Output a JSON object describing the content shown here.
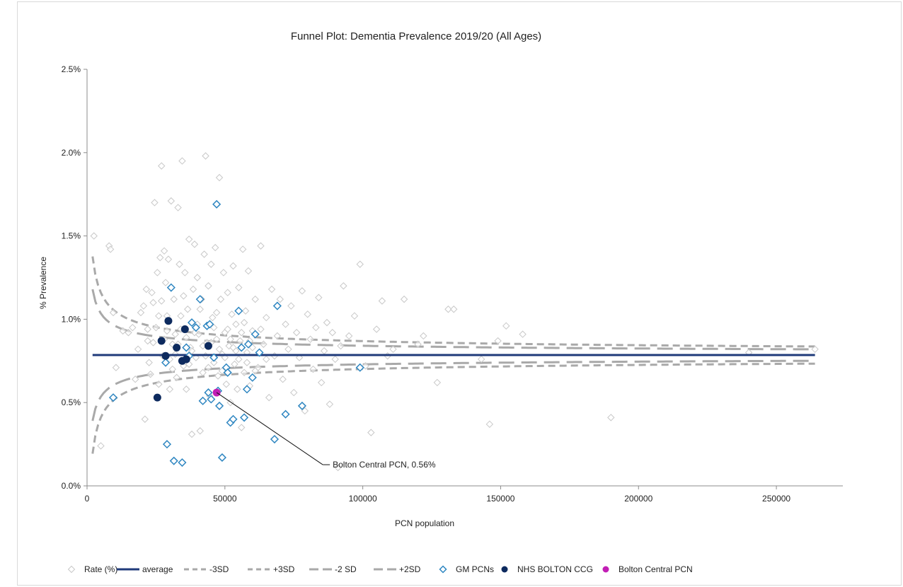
{
  "chart_data": {
    "type": "scatter",
    "title": "Funnel Plot: Dementia Prevalence 2019/20 (All Ages)",
    "xlabel": "PCN population",
    "ylabel": "% Prevalence",
    "xlim": [
      0,
      270000
    ],
    "ylim": [
      0,
      0.025
    ],
    "x_ticks": [
      0,
      50000,
      100000,
      150000,
      200000,
      250000
    ],
    "x_tick_labels": [
      "0",
      "50000",
      "100000",
      "150000",
      "200000",
      "250000"
    ],
    "y_ticks": [
      0,
      0.005,
      0.01,
      0.015,
      0.02,
      0.025
    ],
    "y_tick_labels": [
      "0.0%",
      "0.5%",
      "1.0%",
      "1.5%",
      "2.0%",
      "2.5%"
    ],
    "grid": false,
    "legend_position": "bottom",
    "average": 0.00785,
    "x_max_line": 264000,
    "sd_multipliers": {
      "minus3": -3,
      "plus3": 3,
      "minus2": -2,
      "plus2": 2
    },
    "series": [
      {
        "name": "Rate (%)",
        "kind": "points",
        "marker": "diamond-open",
        "color": "#c8c8c8",
        "points": [
          [
            2500,
            0.015
          ],
          [
            5000,
            0.0024
          ],
          [
            8000,
            0.0144
          ],
          [
            8500,
            0.0142
          ],
          [
            9500,
            0.0104
          ],
          [
            10500,
            0.0071
          ],
          [
            13000,
            0.0093
          ],
          [
            15000,
            0.0092
          ],
          [
            16500,
            0.0095
          ],
          [
            17500,
            0.0064
          ],
          [
            18500,
            0.0082
          ],
          [
            19500,
            0.0104
          ],
          [
            20500,
            0.0108
          ],
          [
            21000,
            0.004
          ],
          [
            21500,
            0.0118
          ],
          [
            22000,
            0.0087
          ],
          [
            22500,
            0.0074
          ],
          [
            23000,
            0.0067
          ],
          [
            23500,
            0.0116
          ],
          [
            24000,
            0.011
          ],
          [
            24500,
            0.017
          ],
          [
            25000,
            0.0095
          ],
          [
            25500,
            0.0128
          ],
          [
            26000,
            0.0061
          ],
          [
            26500,
            0.0137
          ],
          [
            27000,
            0.0192
          ],
          [
            27500,
            0.0078
          ],
          [
            28000,
            0.0141
          ],
          [
            28500,
            0.0122
          ],
          [
            29000,
            0.0102
          ],
          [
            29500,
            0.0136
          ],
          [
            30000,
            0.0058
          ],
          [
            30500,
            0.0171
          ],
          [
            31000,
            0.0085
          ],
          [
            31500,
            0.0112
          ],
          [
            32000,
            0.0091
          ],
          [
            32500,
            0.0065
          ],
          [
            33000,
            0.0167
          ],
          [
            33500,
            0.0133
          ],
          [
            34000,
            0.0094
          ],
          [
            34500,
            0.0195
          ],
          [
            35000,
            0.0072
          ],
          [
            35500,
            0.0128
          ],
          [
            36000,
            0.0058
          ],
          [
            36500,
            0.0106
          ],
          [
            37000,
            0.0148
          ],
          [
            37500,
            0.0083
          ],
          [
            38000,
            0.0031
          ],
          [
            38500,
            0.0118
          ],
          [
            39000,
            0.0145
          ],
          [
            39500,
            0.0077
          ],
          [
            40000,
            0.0125
          ],
          [
            40500,
            0.0091
          ],
          [
            41000,
            0.0033
          ],
          [
            41500,
            0.0112
          ],
          [
            42000,
            0.0068
          ],
          [
            42500,
            0.0139
          ],
          [
            43000,
            0.0198
          ],
          [
            43500,
            0.0086
          ],
          [
            44000,
            0.012
          ],
          [
            44500,
            0.0054
          ],
          [
            45000,
            0.0133
          ],
          [
            45500,
            0.0101
          ],
          [
            46000,
            0.0074
          ],
          [
            46500,
            0.0143
          ],
          [
            47000,
            0.0088
          ],
          [
            47500,
            0.0066
          ],
          [
            48000,
            0.0185
          ],
          [
            48500,
            0.0112
          ],
          [
            49000,
            0.0079
          ],
          [
            49500,
            0.0128
          ],
          [
            50000,
            0.0092
          ],
          [
            50500,
            0.0061
          ],
          [
            51000,
            0.0116
          ],
          [
            51500,
            0.0084
          ],
          [
            52000,
            0.005
          ],
          [
            52500,
            0.0103
          ],
          [
            53000,
            0.0132
          ],
          [
            53500,
            0.0073
          ],
          [
            54000,
            0.0097
          ],
          [
            54500,
            0.0058
          ],
          [
            55000,
            0.0119
          ],
          [
            55500,
            0.0087
          ],
          [
            56000,
            0.0035
          ],
          [
            56500,
            0.0142
          ],
          [
            57000,
            0.0068
          ],
          [
            57500,
            0.0105
          ],
          [
            58000,
            0.008
          ],
          [
            58500,
            0.0129
          ],
          [
            59000,
            0.006
          ],
          [
            60000,
            0.0093
          ],
          [
            61000,
            0.0112
          ],
          [
            62000,
            0.0071
          ],
          [
            63000,
            0.0144
          ],
          [
            64000,
            0.0085
          ],
          [
            65000,
            0.0101
          ],
          [
            66000,
            0.0053
          ],
          [
            67000,
            0.0118
          ],
          [
            68000,
            0.0078
          ],
          [
            69000,
            0.009
          ],
          [
            70000,
            0.0112
          ],
          [
            71000,
            0.0064
          ],
          [
            72000,
            0.0097
          ],
          [
            73000,
            0.0082
          ],
          [
            74000,
            0.0108
          ],
          [
            75000,
            0.0056
          ],
          [
            76000,
            0.0092
          ],
          [
            77000,
            0.0077
          ],
          [
            78000,
            0.0117
          ],
          [
            79000,
            0.0045
          ],
          [
            80000,
            0.0103
          ],
          [
            81000,
            0.0088
          ],
          [
            82000,
            0.007
          ],
          [
            83000,
            0.0095
          ],
          [
            84000,
            0.0113
          ],
          [
            85000,
            0.0062
          ],
          [
            86000,
            0.0081
          ],
          [
            87000,
            0.0098
          ],
          [
            88000,
            0.0049
          ],
          [
            89000,
            0.0092
          ],
          [
            90000,
            0.0076
          ],
          [
            91000,
            0.0011
          ],
          [
            92000,
            0.0084
          ],
          [
            93000,
            0.012
          ],
          [
            95000,
            0.009
          ],
          [
            97000,
            0.0102
          ],
          [
            99000,
            0.0133
          ],
          [
            101000,
            0.0072
          ],
          [
            103000,
            0.0032
          ],
          [
            105000,
            0.0094
          ],
          [
            107000,
            0.0111
          ],
          [
            109000,
            0.0078
          ],
          [
            111000,
            0.0082
          ],
          [
            115000,
            0.0112
          ],
          [
            120000,
            0.0085
          ],
          [
            122000,
            0.009
          ],
          [
            127000,
            0.0062
          ],
          [
            131000,
            0.0106
          ],
          [
            133000,
            0.0106
          ],
          [
            143000,
            0.0076
          ],
          [
            146000,
            0.0037
          ],
          [
            149000,
            0.0087
          ],
          [
            152000,
            0.0096
          ],
          [
            158000,
            0.0091
          ],
          [
            190000,
            0.0041
          ],
          [
            240000,
            0.008
          ],
          [
            264000,
            0.0082
          ],
          [
            22000,
            0.0094
          ],
          [
            24000,
            0.0086
          ],
          [
            26000,
            0.0102
          ],
          [
            28000,
            0.0088
          ],
          [
            30000,
            0.0076
          ],
          [
            32000,
            0.0079
          ],
          [
            34000,
            0.0102
          ],
          [
            36000,
            0.0089
          ],
          [
            38000,
            0.0081
          ],
          [
            40000,
            0.0097
          ],
          [
            42000,
            0.0084
          ],
          [
            44000,
            0.0071
          ],
          [
            46000,
            0.0095
          ],
          [
            48000,
            0.0082
          ],
          [
            50000,
            0.0077
          ],
          [
            52000,
            0.0088
          ],
          [
            54000,
            0.0081
          ],
          [
            56000,
            0.0092
          ],
          [
            58000,
            0.0074
          ],
          [
            60000,
            0.0083
          ],
          [
            27000,
            0.0111
          ],
          [
            29000,
            0.0093
          ],
          [
            31000,
            0.007
          ],
          [
            33000,
            0.0085
          ],
          [
            35000,
            0.0114
          ],
          [
            37000,
            0.0073
          ],
          [
            39000,
            0.0092
          ],
          [
            41000,
            0.0106
          ],
          [
            43000,
            0.0078
          ],
          [
            45000,
            0.0086
          ],
          [
            47000,
            0.0104
          ],
          [
            49000,
            0.0069
          ],
          [
            51000,
            0.0094
          ],
          [
            53000,
            0.0083
          ],
          [
            55000,
            0.0076
          ],
          [
            57000,
            0.0098
          ],
          [
            59000,
            0.0087
          ],
          [
            61000,
            0.0069
          ],
          [
            63000,
            0.0094
          ],
          [
            65000,
            0.0076
          ]
        ]
      },
      {
        "name": "average",
        "kind": "line",
        "color": "#1f3a7a",
        "style": "solid"
      },
      {
        "name": "-3SD",
        "kind": "line",
        "color": "#a9a9a9",
        "style": "dashed-short"
      },
      {
        "name": "+3SD",
        "kind": "line",
        "color": "#a9a9a9",
        "style": "dashed-short"
      },
      {
        "name": "-2 SD",
        "kind": "line",
        "color": "#a9a9a9",
        "style": "dashed-long"
      },
      {
        "name": "+2SD",
        "kind": "line",
        "color": "#a9a9a9",
        "style": "dashed-long"
      },
      {
        "name": "GM PCNs",
        "kind": "points",
        "marker": "diamond-open",
        "color": "#2e86c1",
        "points": [
          [
            9500,
            0.0053
          ],
          [
            28500,
            0.0074
          ],
          [
            29000,
            0.0025
          ],
          [
            30500,
            0.0119
          ],
          [
            31500,
            0.0015
          ],
          [
            34500,
            0.0014
          ],
          [
            36000,
            0.0083
          ],
          [
            37000,
            0.0078
          ],
          [
            38000,
            0.0098
          ],
          [
            39500,
            0.0095
          ],
          [
            41000,
            0.0112
          ],
          [
            42000,
            0.0051
          ],
          [
            43500,
            0.0096
          ],
          [
            44000,
            0.0056
          ],
          [
            44500,
            0.0097
          ],
          [
            45000,
            0.0052
          ],
          [
            46000,
            0.0077
          ],
          [
            47000,
            0.0169
          ],
          [
            47500,
            0.0057
          ],
          [
            48000,
            0.0048
          ],
          [
            49000,
            0.0017
          ],
          [
            50500,
            0.0071
          ],
          [
            51000,
            0.0068
          ],
          [
            52000,
            0.0038
          ],
          [
            53000,
            0.004
          ],
          [
            55000,
            0.0105
          ],
          [
            56000,
            0.0083
          ],
          [
            57000,
            0.0041
          ],
          [
            58000,
            0.0058
          ],
          [
            58500,
            0.0085
          ],
          [
            60000,
            0.0065
          ],
          [
            61000,
            0.0091
          ],
          [
            62500,
            0.008
          ],
          [
            68000,
            0.0028
          ],
          [
            69000,
            0.0108
          ],
          [
            72000,
            0.0043
          ],
          [
            78000,
            0.0048
          ],
          [
            99000,
            0.0071
          ]
        ]
      },
      {
        "name": "NHS BOLTON CCG",
        "kind": "points",
        "marker": "circle",
        "color": "#0d2a5e",
        "points": [
          [
            25500,
            0.0053
          ],
          [
            27000,
            0.0087
          ],
          [
            28500,
            0.0078
          ],
          [
            29500,
            0.0099
          ],
          [
            32500,
            0.0083
          ],
          [
            34500,
            0.0075
          ],
          [
            35500,
            0.0094
          ],
          [
            36000,
            0.0076
          ],
          [
            44000,
            0.0084
          ]
        ]
      },
      {
        "name": "Bolton Central PCN",
        "kind": "points",
        "marker": "circle",
        "color": "#c21eb5",
        "points": [
          [
            47000,
            0.0056
          ]
        ]
      }
    ],
    "annotations": [
      {
        "text": "Bolton Central PCN, 0.56%",
        "x": 47000,
        "y": 0.0056
      }
    ]
  }
}
